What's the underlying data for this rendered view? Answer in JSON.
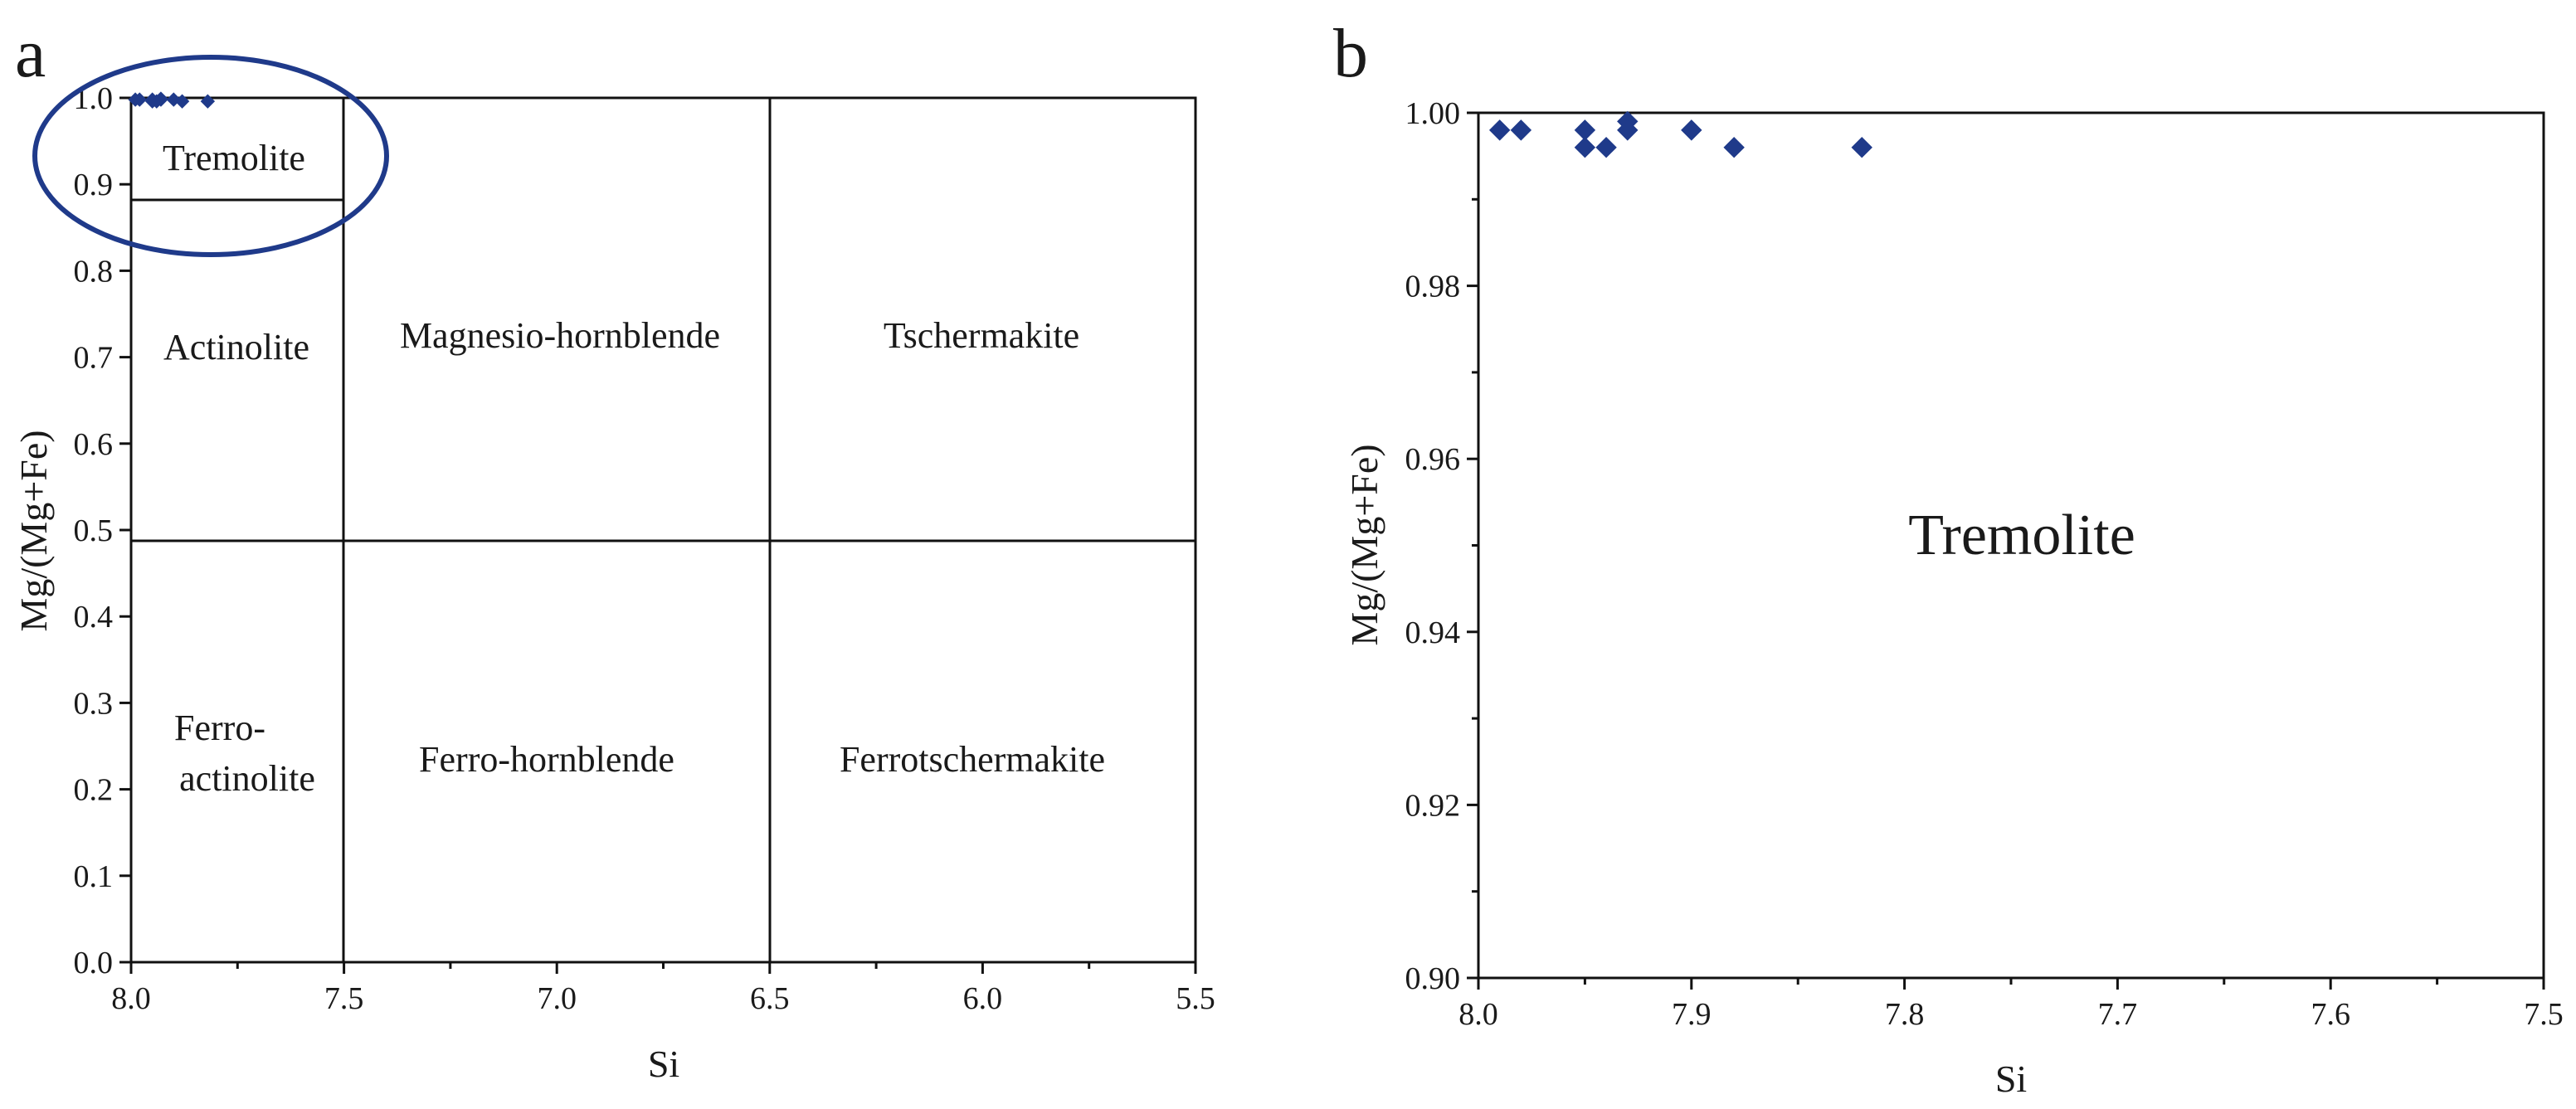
{
  "colors": {
    "marker": "#1f3a8a",
    "ellipse": "#1f3a8a",
    "axis": "#111111"
  },
  "chart_data": [
    {
      "panel_label": "a",
      "type": "scatter",
      "xlabel": "Si",
      "ylabel": "Mg/(Mg+Fe)",
      "xlim": [
        8.0,
        5.5
      ],
      "ylim": [
        0.0,
        1.0
      ],
      "x_ticks": [
        "8.0",
        "7.5",
        "7.0",
        "6.5",
        "6.0",
        "5.5"
      ],
      "y_ticks": [
        "0.0",
        "0.1",
        "0.2",
        "0.3",
        "0.4",
        "0.5",
        "0.6",
        "0.7",
        "0.8",
        "0.9",
        "1.0"
      ],
      "grid": false,
      "region_labels": [
        "Tremolite",
        "Actinolite",
        "Magnesio-hornblende",
        "Tschermakite",
        "Ferro-",
        "actinolite",
        "Ferro-hornblende",
        "Ferrotschermakite"
      ],
      "points": [
        {
          "x": 7.99,
          "y": 0.998
        },
        {
          "x": 7.98,
          "y": 0.998
        },
        {
          "x": 7.95,
          "y": 0.998
        },
        {
          "x": 7.95,
          "y": 0.996
        },
        {
          "x": 7.94,
          "y": 0.996
        },
        {
          "x": 7.93,
          "y": 0.999
        },
        {
          "x": 7.93,
          "y": 0.998
        },
        {
          "x": 7.9,
          "y": 0.998
        },
        {
          "x": 7.88,
          "y": 0.996
        },
        {
          "x": 7.82,
          "y": 0.996
        }
      ]
    },
    {
      "panel_label": "b",
      "type": "scatter",
      "xlabel": "Si",
      "ylabel": "Mg/(Mg+Fe)",
      "xlim": [
        8.0,
        7.5
      ],
      "ylim": [
        0.9,
        1.0
      ],
      "x_ticks": [
        "8.0",
        "7.9",
        "7.8",
        "7.7",
        "7.6",
        "7.5"
      ],
      "y_ticks": [
        "0.90",
        "0.92",
        "0.94",
        "0.96",
        "0.98",
        "1.00"
      ],
      "grid": false,
      "region_labels": [
        "Tremolite"
      ],
      "points": [
        {
          "x": 7.99,
          "y": 0.998
        },
        {
          "x": 7.98,
          "y": 0.998
        },
        {
          "x": 7.95,
          "y": 0.998
        },
        {
          "x": 7.95,
          "y": 0.996
        },
        {
          "x": 7.94,
          "y": 0.996
        },
        {
          "x": 7.93,
          "y": 0.999
        },
        {
          "x": 7.93,
          "y": 0.998
        },
        {
          "x": 7.9,
          "y": 0.998
        },
        {
          "x": 7.88,
          "y": 0.996
        },
        {
          "x": 7.82,
          "y": 0.996
        }
      ]
    }
  ]
}
